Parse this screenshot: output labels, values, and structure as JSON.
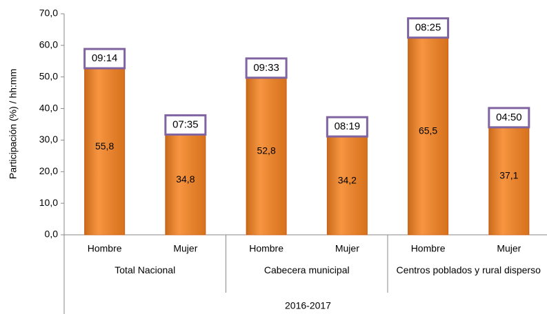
{
  "chart_data": {
    "type": "bar",
    "y_label": "Participación (%) / hh:mm",
    "x_label": "2016-2017",
    "groups": [
      "Total Nacional",
      "Cabecera municipal",
      "Centros poblados y rural disperso"
    ],
    "categories": [
      "Hombre",
      "Mujer",
      "Hombre",
      "Mujer",
      "Hombre",
      "Mujer"
    ],
    "values": [
      55.8,
      34.8,
      52.8,
      34.2,
      65.5,
      37.1
    ],
    "value_labels": [
      "55,8",
      "34,8",
      "52,8",
      "34,2",
      "65,5",
      "37,1"
    ],
    "time_labels": [
      "09:14",
      "07:35",
      "09:33",
      "08:19",
      "08:25",
      "04:50"
    ],
    "color": "#f58220",
    "annotation_border": "#8064a2",
    "ylim": [
      0,
      70
    ],
    "yticks": [
      {
        "value": 0,
        "label": "0,0"
      },
      {
        "value": 10,
        "label": "10,0"
      },
      {
        "value": 20,
        "label": "20,0"
      },
      {
        "value": 30,
        "label": "30,0"
      },
      {
        "value": 40,
        "label": "40,0"
      },
      {
        "value": 50,
        "label": "50,0"
      },
      {
        "value": 60,
        "label": "60,0"
      },
      {
        "value": 70,
        "label": "70,0"
      }
    ],
    "grid": false
  }
}
